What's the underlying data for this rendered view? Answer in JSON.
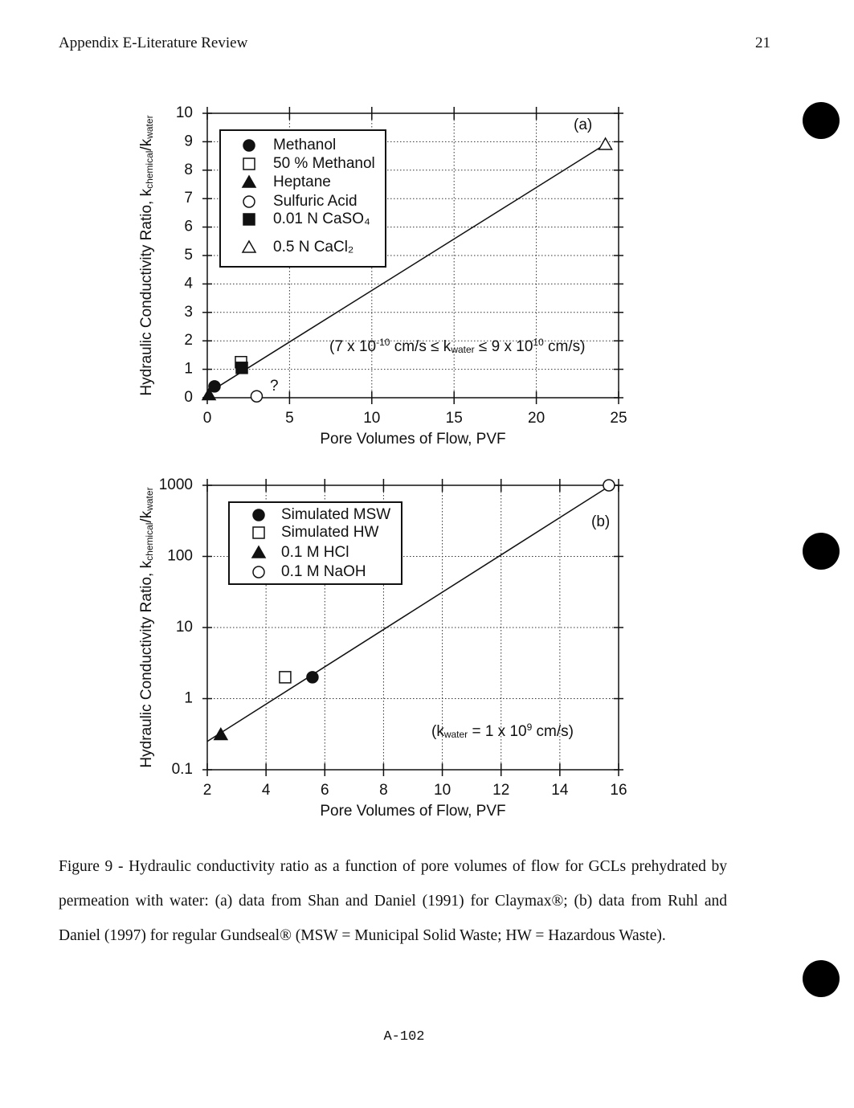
{
  "header": {
    "title": "Appendix E-Literature Review",
    "page_number": "21"
  },
  "chart_data": [
    {
      "type": "scatter",
      "panel_label": "(a)",
      "note": "?",
      "x_label": "Pore Volumes of Flow, PVF",
      "y_label": [
        "Hydraulic Conductivity Ratio, k",
        "chemical",
        "/k",
        "water"
      ],
      "annotation": [
        "(7 x 10",
        "-10",
        " cm/s ≤ k",
        "water",
        " ≤ 9 x 10",
        "10",
        " cm/s)"
      ],
      "xlim": [
        0,
        25
      ],
      "xticks": [
        0,
        5,
        10,
        15,
        20,
        25
      ],
      "ylim": [
        0,
        10
      ],
      "yticks": [
        0,
        1,
        2,
        3,
        4,
        5,
        6,
        7,
        8,
        9,
        10
      ],
      "ylog": false,
      "grid": true,
      "color": "#111111",
      "series": [
        {
          "name": "Methanol",
          "marker": "circle-filled",
          "x": [
            0.44
          ],
          "values": [
            0.4
          ]
        },
        {
          "name": "50 % Methanol",
          "marker": "square-open",
          "x": [
            2.05
          ],
          "values": [
            1.25
          ]
        },
        {
          "name": "Heptane",
          "marker": "triangle-filled",
          "x": [
            0.1
          ],
          "values": [
            0.1
          ]
        },
        {
          "name": "Sulfuric Acid",
          "marker": "circle-open",
          "x": [
            3.0
          ],
          "values": [
            0.05
          ]
        },
        {
          "name": "0.01 N CaSO₄",
          "marker": "square-filled",
          "x": [
            2.1
          ],
          "values": [
            1.05
          ]
        },
        {
          "name": "0.5 N CaCl₂",
          "marker": "triangle-open",
          "x": [
            24.2
          ],
          "values": [
            8.9
          ]
        }
      ],
      "fit": {
        "x": [
          0,
          24.3
        ],
        "values": [
          0.15,
          8.95
        ]
      }
    },
    {
      "type": "scatter",
      "panel_label": "(b)",
      "x_label": "Pore Volumes of Flow, PVF",
      "y_label": [
        "Hydraulic Conductivity Ratio, k",
        "chemical",
        "/k",
        "water"
      ],
      "annotation": [
        "(k",
        "water",
        " = 1 x 10",
        "9",
        " cm/s)"
      ],
      "xlim": [
        2,
        16
      ],
      "xticks": [
        2,
        4,
        6,
        8,
        10,
        12,
        14,
        16
      ],
      "ylim": [
        0.1,
        1000
      ],
      "yticks": [
        0.1,
        1,
        10,
        100,
        1000
      ],
      "ylog": true,
      "grid": true,
      "color": "#111111",
      "series": [
        {
          "name": "Simulated MSW",
          "marker": "circle-filled",
          "x": [
            5.58
          ],
          "values": [
            2.0
          ]
        },
        {
          "name": "Simulated HW",
          "marker": "square-open",
          "x": [
            4.65
          ],
          "values": [
            2.0
          ]
        },
        {
          "name": "0.1 M HCl",
          "marker": "triangle-filled",
          "x": [
            2.46
          ],
          "values": [
            0.31
          ]
        },
        {
          "name": "0.1 M NaOH",
          "marker": "circle-open",
          "x": [
            15.67
          ],
          "values": [
            1000
          ]
        }
      ],
      "fit": {
        "x": [
          2,
          15.73
        ],
        "values": [
          0.25,
          1000
        ]
      }
    }
  ],
  "caption": "Figure 9 - Hydraulic conductivity ratio as a function of pore volumes of flow for GCLs prehydrated by permeation with water: (a) data from Shan and Daniel (1991) for Claymax®; (b) data from Ruhl and Daniel (1997) for regular Gundseal® (MSW = Municipal Solid Waste; HW = Hazardous Waste).",
  "footer": "A-102"
}
